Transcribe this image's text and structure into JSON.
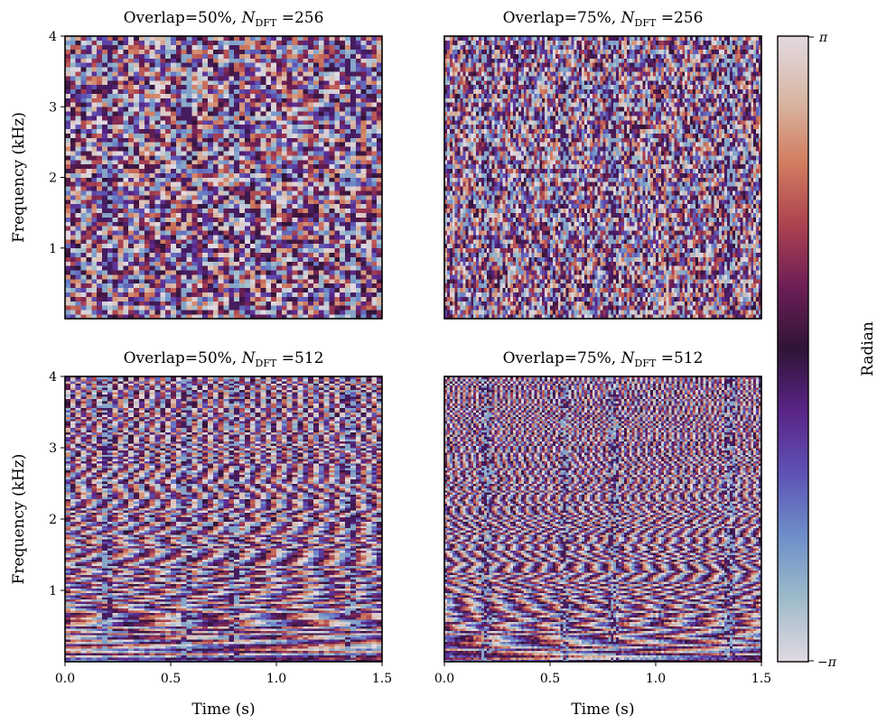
{
  "chart_data": [
    {
      "type": "heatmap",
      "title_prefix": "Overlap=50%, ",
      "title_var": "N",
      "title_sub": "DFT",
      "title_suffix": " =256",
      "ylabel": "Frequency (kHz)",
      "xlabel": "",
      "xlim": [
        0.0,
        1.5
      ],
      "ylim": [
        0.0,
        4.0
      ],
      "yticks": [
        "1",
        "2",
        "3",
        "4"
      ],
      "xticks": [],
      "overlap": 50,
      "n_dft": 256,
      "seed": 11
    },
    {
      "type": "heatmap",
      "title_prefix": "Overlap=75%, ",
      "title_var": "N",
      "title_sub": "DFT",
      "title_suffix": " =256",
      "ylabel": "",
      "xlabel": "",
      "xlim": [
        0.0,
        1.5
      ],
      "ylim": [
        0.0,
        4.0
      ],
      "yticks": [],
      "xticks": [],
      "overlap": 75,
      "n_dft": 256,
      "seed": 23
    },
    {
      "type": "heatmap",
      "title_prefix": "Overlap=50%, ",
      "title_var": "N",
      "title_sub": "DFT",
      "title_suffix": " =512",
      "ylabel": "Frequency (kHz)",
      "xlabel": "Time (s)",
      "xlim": [
        0.0,
        1.5
      ],
      "ylim": [
        0.0,
        4.0
      ],
      "yticks": [
        "1",
        "2",
        "3",
        "4"
      ],
      "xticks": [
        "0.0",
        "0.5",
        "1.0",
        "1.5"
      ],
      "overlap": 50,
      "n_dft": 512,
      "seed": 37
    },
    {
      "type": "heatmap",
      "title_prefix": "Overlap=75%, ",
      "title_var": "N",
      "title_sub": "DFT",
      "title_suffix": " =512",
      "ylabel": "",
      "xlabel": "Time (s)",
      "xlim": [
        0.0,
        1.5
      ],
      "ylim": [
        0.0,
        4.0
      ],
      "yticks": [],
      "xticks": [
        "0.0",
        "0.5",
        "1.0",
        "1.5"
      ],
      "overlap": 75,
      "n_dft": 512,
      "seed": 53
    }
  ],
  "colorbar": {
    "label": "Radian",
    "top_label": "π",
    "bottom_label": "−π",
    "range": [
      -3.14159,
      3.14159
    ],
    "colors": [
      "#e2d9e2",
      "#9ebbc9",
      "#6e8fc9",
      "#5e53b5",
      "#5a2487",
      "#2f1436",
      "#6d1f56",
      "#ad4350",
      "#d27e60",
      "#d8b8a6",
      "#e2d9e2"
    ]
  }
}
